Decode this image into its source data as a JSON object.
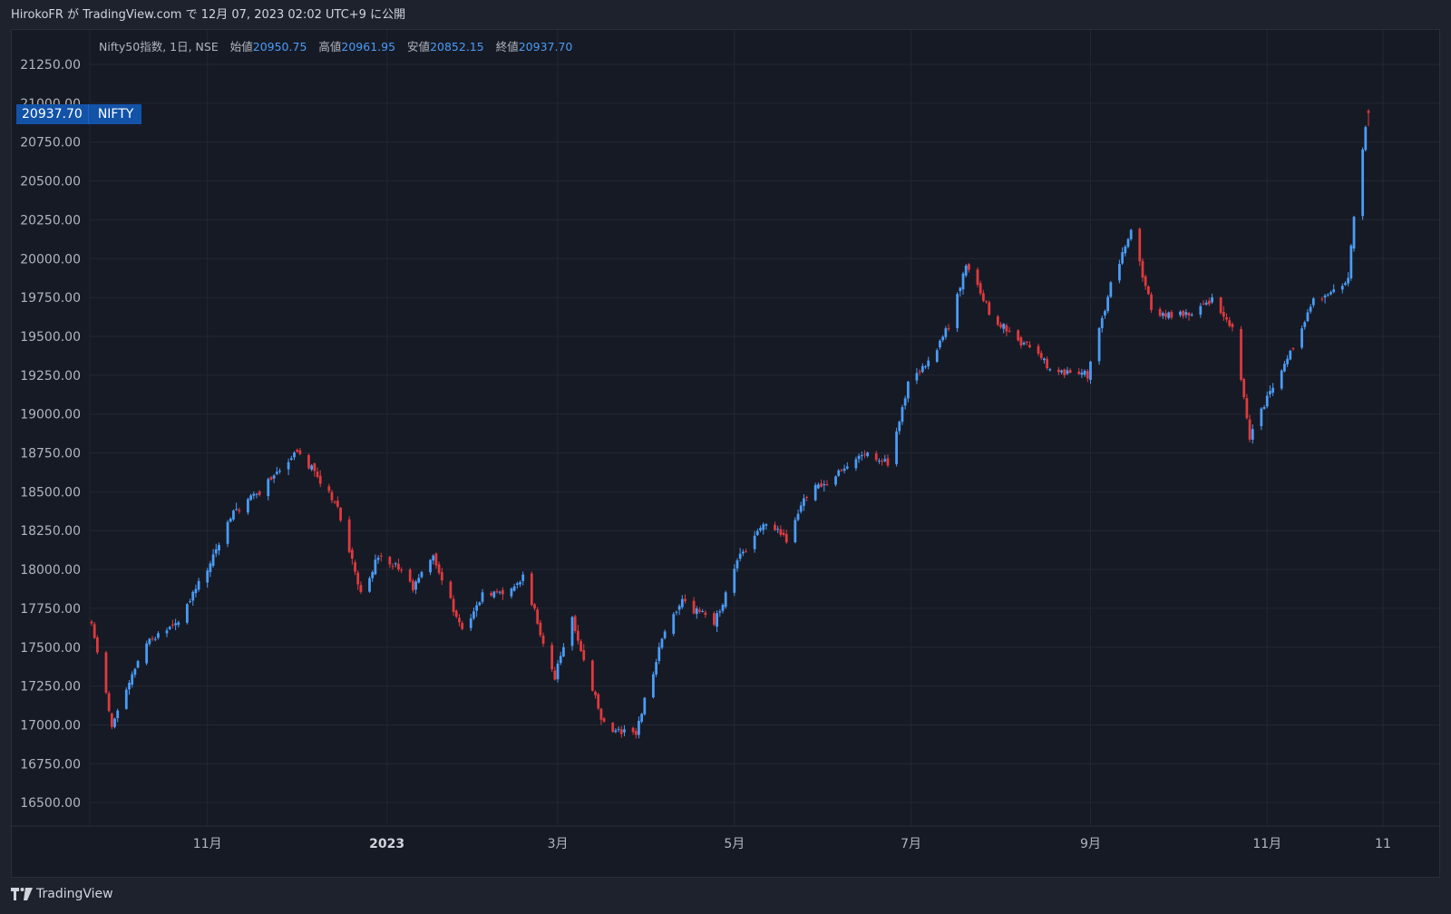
{
  "header": {
    "publish_text": "HirokoFR が TradingView.com で 12月 07, 2023 02:02 UTC+9 に公開"
  },
  "legend": {
    "symbol_text": "Nifty50指数, 1日, NSE",
    "open_label": "始値",
    "open_value": "20950.75",
    "high_label": "高値",
    "high_value": "20961.95",
    "low_label": "安値",
    "low_value": "20852.15",
    "close_label": "終値",
    "close_value": "20937.70"
  },
  "price_tag": {
    "value": "20937.70",
    "symbol": "NIFTY"
  },
  "footer": {
    "brand": "TradingView"
  },
  "colors": {
    "background": "#161a25",
    "grid": "#232733",
    "up": "#4b9cf6",
    "down": "#e03a3e",
    "tag": "#1253a8"
  },
  "chart_data": {
    "type": "candlestick",
    "ylim": [
      16350,
      21350
    ],
    "yticks": [
      "21250.00",
      "21000.00",
      "20750.00",
      "20500.00",
      "20250.00",
      "20000.00",
      "19750.00",
      "19500.00",
      "19250.00",
      "19000.00",
      "18750.00",
      "18500.00",
      "18250.00",
      "18000.00",
      "17750.00",
      "17500.00",
      "17250.00",
      "17000.00",
      "16750.00",
      "16500.00"
    ],
    "xticks": [
      "11月",
      "2023",
      "3月",
      "5月",
      "7月",
      "9月",
      "11月",
      "11"
    ],
    "grid": true,
    "anchors": [
      [
        "2022-09-21",
        17650
      ],
      [
        "2022-09-28",
        17000
      ],
      [
        "2022-10-04",
        17274
      ],
      [
        "2022-10-10",
        17540
      ],
      [
        "2022-10-20",
        17640
      ],
      [
        "2022-10-31",
        18000
      ],
      [
        "2022-11-08",
        18350
      ],
      [
        "2022-11-15",
        18450
      ],
      [
        "2022-12-01",
        18760
      ],
      [
        "2022-12-06",
        18640
      ],
      [
        "2022-12-15",
        18400
      ],
      [
        "2022-12-23",
        17850
      ],
      [
        "2022-12-30",
        18100
      ],
      [
        "2023-01-10",
        17900
      ],
      [
        "2023-01-17",
        18080
      ],
      [
        "2023-01-27",
        17600
      ],
      [
        "2023-02-03",
        17850
      ],
      [
        "2023-02-10",
        17850
      ],
      [
        "2023-02-17",
        17950
      ],
      [
        "2023-02-28",
        17300
      ],
      [
        "2023-03-06",
        17700
      ],
      [
        "2023-03-10",
        17400
      ],
      [
        "2023-03-17",
        17000
      ],
      [
        "2023-03-28",
        16950
      ],
      [
        "2023-04-06",
        17560
      ],
      [
        "2023-04-13",
        17800
      ],
      [
        "2023-04-24",
        17650
      ],
      [
        "2023-05-03",
        18100
      ],
      [
        "2023-05-12",
        18300
      ],
      [
        "2023-05-19",
        18200
      ],
      [
        "2023-05-26",
        18500
      ],
      [
        "2023-06-02",
        18550
      ],
      [
        "2023-06-14",
        18750
      ],
      [
        "2023-06-23",
        18680
      ],
      [
        "2023-06-30",
        19180
      ],
      [
        "2023-07-07",
        19330
      ],
      [
        "2023-07-14",
        19560
      ],
      [
        "2023-07-20",
        19970
      ],
      [
        "2023-07-28",
        19650
      ],
      [
        "2023-08-04",
        19500
      ],
      [
        "2023-08-11",
        19430
      ],
      [
        "2023-08-18",
        19300
      ],
      [
        "2023-08-25",
        19265
      ],
      [
        "2023-08-31",
        19250
      ],
      [
        "2023-09-08",
        19820
      ],
      [
        "2023-09-15",
        20190
      ],
      [
        "2023-09-22",
        19670
      ],
      [
        "2023-09-29",
        19640
      ],
      [
        "2023-10-06",
        19650
      ],
      [
        "2023-10-13",
        19750
      ],
      [
        "2023-10-20",
        19540
      ],
      [
        "2023-10-26",
        18860
      ],
      [
        "2023-11-02",
        19130
      ],
      [
        "2023-11-10",
        19420
      ],
      [
        "2023-11-17",
        19730
      ],
      [
        "2023-11-24",
        19790
      ],
      [
        "2023-11-29",
        19890
      ],
      [
        "2023-12-01",
        20270
      ],
      [
        "2023-12-04",
        20690
      ],
      [
        "2023-12-05",
        20850
      ],
      [
        "2023-12-06",
        20937.7
      ]
    ],
    "last_candle": {
      "open": 20950.75,
      "high": 20961.95,
      "low": 20852.15,
      "close": 20937.7
    },
    "candles_seed": 12345
  }
}
